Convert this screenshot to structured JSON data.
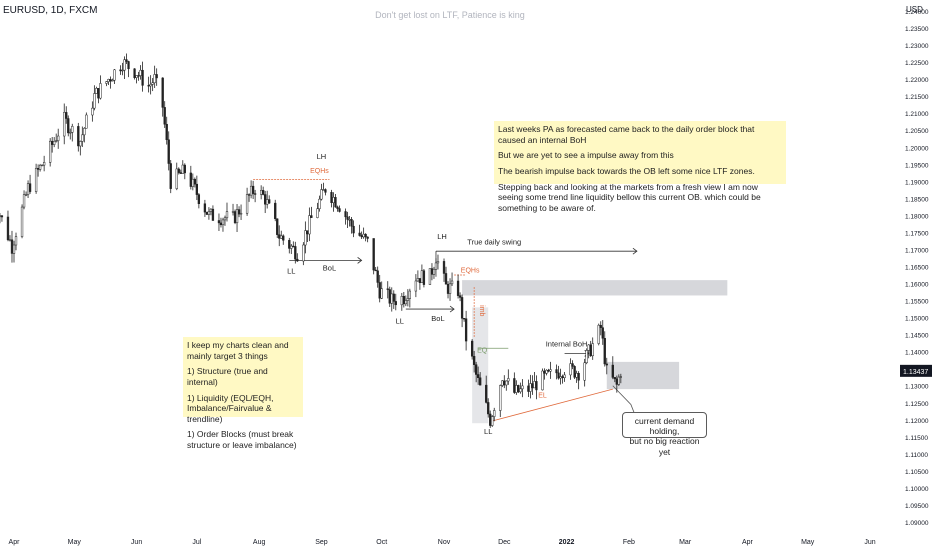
{
  "header": {
    "symbol": "EURUSD, 1D, FXCM",
    "watermark": "Don't get lost on LTF, Patience is king",
    "currency": "USD",
    "last_price": "1.13437"
  },
  "colors": {
    "bull": "#222222",
    "bear": "#222222",
    "zone": "#d6d7db",
    "note_bg": "#fff9c4",
    "orange": "#e06a3c",
    "eq_line": "#7a9b6a",
    "price_tag": "#131722"
  },
  "notes": {
    "right": [
      "Last weeks PA as forecasted came back to the daily order block that caused an internal BoH",
      "But we are yet to see a impulse away from this",
      "The bearish impulse back towards the OB left some nice LTF zones.",
      "Stepping back and looking at the markets from a fresh view I am now seeing some trend line liquidity bellow this current OB. which could be something to be aware of."
    ],
    "left": [
      "I keep my charts clean and mainly target 3 things",
      "1) Structure (true and internal)",
      "1) Liquidity (EQL/EQH, Imbalance/Fairvalue & trendline)",
      "1) Order Blocks (must break structure or leave imbalance)"
    ],
    "callout": "current demand holding,\nbut no big reaction yet"
  },
  "chart_data": {
    "type": "candlestick",
    "title": "EURUSD, 1D, FXCM",
    "ylim": [
      1.085,
      1.25
    ],
    "y_ticks": [
      "1.09000",
      "1.09500",
      "1.10000",
      "1.10500",
      "1.11000",
      "1.11500",
      "1.12000",
      "1.12500",
      "1.13000",
      "1.13500",
      "1.14000",
      "1.14500",
      "1.15000",
      "1.15500",
      "1.16000",
      "1.16500",
      "1.17000",
      "1.17500",
      "1.18000",
      "1.18500",
      "1.19000",
      "1.19500",
      "1.20000",
      "1.20500",
      "1.21000",
      "1.21500",
      "1.22000",
      "1.22500",
      "1.23000",
      "1.23500",
      "1.24000"
    ],
    "x_ticks": [
      {
        "label": "Apr",
        "date": "2021-04-01"
      },
      {
        "label": "May",
        "date": "2021-05-01"
      },
      {
        "label": "Jun",
        "date": "2021-06-01"
      },
      {
        "label": "Jul",
        "date": "2021-07-01"
      },
      {
        "label": "Aug",
        "date": "2021-08-01"
      },
      {
        "label": "Sep",
        "date": "2021-09-01"
      },
      {
        "label": "Oct",
        "date": "2021-10-01"
      },
      {
        "label": "Nov",
        "date": "2021-11-01"
      },
      {
        "label": "Dec",
        "date": "2021-12-01"
      },
      {
        "label": "2022",
        "date": "2022-01-01"
      },
      {
        "label": "Feb",
        "date": "2022-02-01"
      },
      {
        "label": "Mar",
        "date": "2022-03-01"
      },
      {
        "label": "Apr",
        "date": "2022-04-01"
      },
      {
        "label": "May",
        "date": "2022-05-01"
      },
      {
        "label": "Jun",
        "date": "2022-06-01"
      }
    ],
    "close_path": [
      [
        "2021-03-22",
        1.185
      ],
      [
        "2021-03-31",
        1.171
      ],
      [
        "2021-04-08",
        1.188
      ],
      [
        "2021-04-16",
        1.196
      ],
      [
        "2021-04-26",
        1.208
      ],
      [
        "2021-05-04",
        1.202
      ],
      [
        "2021-05-11",
        1.215
      ],
      [
        "2021-05-18",
        1.22
      ],
      [
        "2021-05-25",
        1.225
      ],
      [
        "2021-06-01",
        1.222
      ],
      [
        "2021-06-07",
        1.218
      ],
      [
        "2021-06-10",
        1.22
      ],
      [
        "2021-06-14",
        1.212
      ],
      [
        "2021-06-18",
        1.19
      ],
      [
        "2021-06-25",
        1.193
      ],
      [
        "2021-07-07",
        1.18
      ],
      [
        "2021-07-19",
        1.179
      ],
      [
        "2021-07-30",
        1.188
      ],
      [
        "2021-08-04",
        1.185
      ],
      [
        "2021-08-11",
        1.174
      ],
      [
        "2021-08-20",
        1.169
      ],
      [
        "2021-08-27",
        1.179
      ],
      [
        "2021-09-03",
        1.188
      ],
      [
        "2021-09-10",
        1.183
      ],
      [
        "2021-09-17",
        1.176
      ],
      [
        "2021-09-24",
        1.172
      ],
      [
        "2021-09-30",
        1.158
      ],
      [
        "2021-10-06",
        1.155
      ],
      [
        "2021-10-12",
        1.156
      ],
      [
        "2021-10-18",
        1.162
      ],
      [
        "2021-10-25",
        1.162
      ],
      [
        "2021-10-28",
        1.168
      ],
      [
        "2021-11-02",
        1.159
      ],
      [
        "2021-11-08",
        1.158
      ],
      [
        "2021-11-12",
        1.144
      ],
      [
        "2021-11-17",
        1.133
      ],
      [
        "2021-11-24",
        1.12
      ],
      [
        "2021-11-30",
        1.133
      ],
      [
        "2021-12-06",
        1.128
      ],
      [
        "2021-12-13",
        1.129
      ],
      [
        "2021-12-20",
        1.132
      ],
      [
        "2021-12-31",
        1.135
      ],
      [
        "2022-01-07",
        1.134
      ],
      [
        "2022-01-14",
        1.142
      ],
      [
        "2022-01-18",
        1.147
      ],
      [
        "2022-01-21",
        1.134
      ],
      [
        "2022-01-26",
        1.13
      ],
      [
        "2022-01-28",
        1.1344
      ]
    ],
    "last_price": 1.13437
  },
  "annotations": {
    "labels": [
      {
        "text": "LH",
        "d": "2021-09-01",
        "p": 1.1965,
        "cls": "dark"
      },
      {
        "text": "EQHs",
        "d": "2021-08-31",
        "p": 1.1925,
        "cls": "orange"
      },
      {
        "text": "LL",
        "d": "2021-08-17",
        "p": 1.163,
        "cls": "dark"
      },
      {
        "text": "BoL",
        "d": "2021-09-05",
        "p": 1.1638,
        "cls": "dark"
      },
      {
        "text": "LH",
        "d": "2021-10-31",
        "p": 1.173,
        "cls": "dark"
      },
      {
        "text": "True daily swing",
        "d": "2021-11-26",
        "p": 1.1715,
        "cls": "dark"
      },
      {
        "text": "EQHs",
        "d": "2021-11-14",
        "p": 1.1632,
        "cls": "orange"
      },
      {
        "text": "LL",
        "d": "2021-10-10",
        "p": 1.1482,
        "cls": "dark"
      },
      {
        "text": "BoL",
        "d": "2021-10-29",
        "p": 1.149,
        "cls": "dark"
      },
      {
        "text": "imb",
        "d": "2021-11-19",
        "p": 1.152,
        "cls": "orange-v"
      },
      {
        "text": "EQ",
        "d": "2021-11-20",
        "p": 1.1398,
        "cls": "green"
      },
      {
        "text": "Internal BoH",
        "d": "2022-01-01",
        "p": 1.1415,
        "cls": "dark"
      },
      {
        "text": "EL",
        "d": "2021-12-20",
        "p": 1.1265,
        "cls": "orange"
      },
      {
        "text": "LL",
        "d": "2021-11-23",
        "p": 1.1158,
        "cls": "dark"
      }
    ]
  }
}
